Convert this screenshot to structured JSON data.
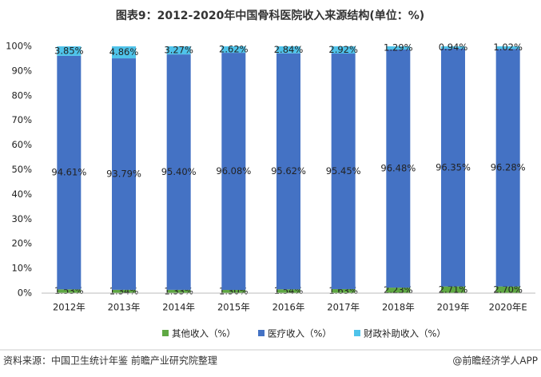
{
  "chart_data": {
    "type": "stacked_bar",
    "title": "图表9：2012-2020年中国骨科医院收入来源结构(单位：%)",
    "categories": [
      "2012年",
      "2013年",
      "2014年",
      "2015年",
      "2016年",
      "2017年",
      "2018年",
      "2019年",
      "2020年E"
    ],
    "series": [
      {
        "name": "其他收入（%）",
        "color": "#5fa843",
        "values": [
          1.53,
          1.34,
          1.33,
          1.3,
          1.54,
          1.63,
          2.23,
          2.71,
          2.7
        ],
        "value_labels": [
          "1.53%",
          "1.34%",
          "1.33%",
          "1.30%",
          "1.54%",
          "1.63%",
          "2.23%",
          "2.71%",
          "2.70%"
        ]
      },
      {
        "name": "医疗收入（%）",
        "color": "#4472c4",
        "values": [
          94.61,
          93.79,
          95.4,
          96.08,
          95.62,
          95.45,
          96.48,
          96.35,
          96.28
        ],
        "value_labels": [
          "94.61%",
          "93.79%",
          "95.40%",
          "96.08%",
          "95.62%",
          "95.45%",
          "96.48%",
          "96.35%",
          "96.28%"
        ]
      },
      {
        "name": "财政补助收入（%）",
        "color": "#4fc3ea",
        "values": [
          3.85,
          4.86,
          3.27,
          2.62,
          2.84,
          2.92,
          1.29,
          0.94,
          1.02
        ],
        "value_labels": [
          "3.85%",
          "4.86%",
          "3.27%",
          "2.62%",
          "2.84%",
          "2.92%",
          "1.29%",
          "0.94%",
          "1.02%"
        ]
      }
    ],
    "ylim": [
      0,
      100
    ],
    "yticks": [
      {
        "value": 0,
        "label": "0%"
      },
      {
        "value": 10,
        "label": "10%"
      },
      {
        "value": 20,
        "label": "20%"
      },
      {
        "value": 30,
        "label": "30%"
      },
      {
        "value": 40,
        "label": "40%"
      },
      {
        "value": 50,
        "label": "50%"
      },
      {
        "value": 60,
        "label": "60%"
      },
      {
        "value": 70,
        "label": "70%"
      },
      {
        "value": 80,
        "label": "80%"
      },
      {
        "value": 90,
        "label": "90%"
      },
      {
        "value": 100,
        "label": "100%"
      }
    ],
    "grid": false,
    "source": "资料来源：中国卫生统计年鉴 前瞻产业研究院整理",
    "brand": "@前瞻经济学人APP"
  }
}
